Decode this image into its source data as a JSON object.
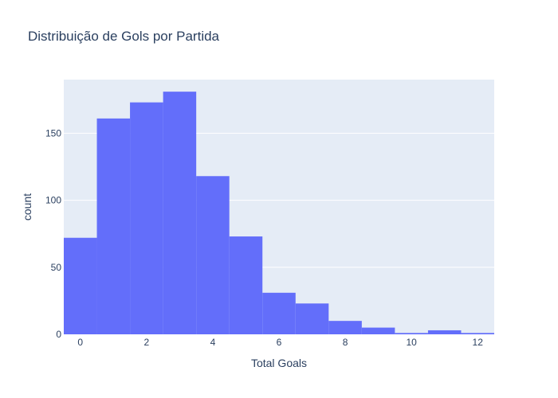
{
  "chart_data": {
    "type": "bar",
    "title": "Distribuição de Gols por Partida",
    "xlabel": "Total Goals",
    "ylabel": "count",
    "x_bin_centers": [
      0,
      1,
      2,
      3,
      4,
      5,
      6,
      7,
      8,
      9,
      10,
      11,
      12
    ],
    "values": [
      72,
      161,
      173,
      181,
      118,
      73,
      31,
      23,
      10,
      5,
      1,
      3,
      1
    ],
    "xlim": [
      -0.5,
      12.5
    ],
    "ylim": [
      0,
      190
    ],
    "x_ticks": [
      0,
      2,
      4,
      6,
      8,
      10,
      12
    ],
    "y_ticks": [
      0,
      50,
      100,
      150
    ],
    "bar_color": "#636efa",
    "plot_bg": "#e5ecf6",
    "grid": true
  }
}
